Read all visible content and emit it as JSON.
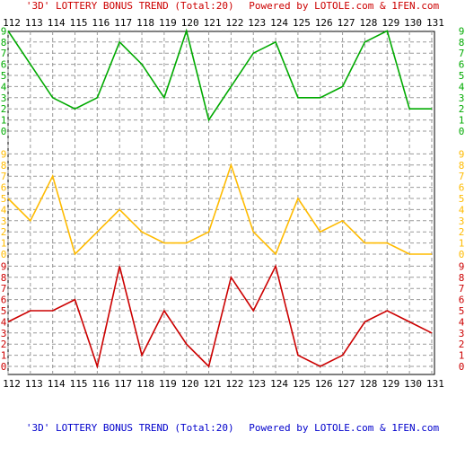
{
  "chart_data": {
    "type": "line",
    "title": "'3D' LOTTERY BONUS TREND (Total:20)",
    "credit": "Powered by LOTOLE.com & 1FEN.com",
    "x": [
      "112",
      "113",
      "114",
      "115",
      "116",
      "117",
      "118",
      "119",
      "120",
      "121",
      "122",
      "123",
      "124",
      "125",
      "126",
      "127",
      "128",
      "129",
      "130",
      "131"
    ],
    "level_labels": [
      "0",
      "1",
      "2",
      "3",
      "4",
      "5",
      "6",
      "7",
      "8",
      "9"
    ],
    "ylim": [
      0,
      9
    ],
    "grid": true,
    "series": [
      {
        "color": "#00aa00",
        "values": [
          9,
          6,
          3,
          2,
          3,
          8,
          6,
          3,
          9,
          1,
          4,
          7,
          8,
          3,
          3,
          4,
          8,
          9,
          2,
          2
        ]
      },
      {
        "color": "#ffbb00",
        "values": [
          5,
          3,
          7,
          0,
          2,
          4,
          2,
          1,
          1,
          2,
          8,
          2,
          0,
          5,
          2,
          3,
          1,
          1,
          0,
          0
        ]
      },
      {
        "color": "#cc0000",
        "values": [
          4,
          5,
          5,
          6,
          0,
          9,
          1,
          5,
          2,
          0,
          8,
          5,
          9,
          1,
          0,
          1,
          4,
          5,
          4,
          3
        ]
      }
    ]
  }
}
